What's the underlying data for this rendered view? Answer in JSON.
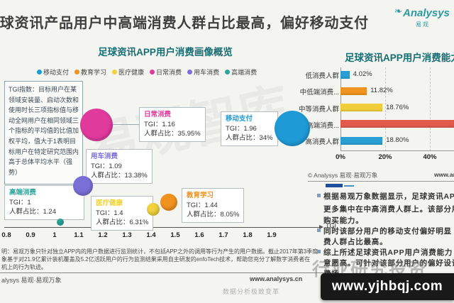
{
  "page": {
    "title": "足球资讯产品用户中高端消费人群占比最高，偏好移动支付",
    "logo": {
      "brand": "Analysys",
      "leaf_icon": "❧",
      "tagline": "易观"
    }
  },
  "left_chart": {
    "title": "足球资讯APP用户消费画像概览",
    "legend": [
      {
        "label": "移动支付",
        "color": "#1e9ad6"
      },
      {
        "label": "教育学习",
        "color": "#f0921e"
      },
      {
        "label": "医疗健康",
        "color": "#efd23e"
      },
      {
        "label": "日常消费",
        "color": "#e13a9d"
      },
      {
        "label": "用车消费",
        "color": "#7a6fd6"
      },
      {
        "label": "高端消费",
        "color": "#2aa79e"
      }
    ],
    "tgi_note": "TGI指数：目标用户在某领域安装量、启动次数和使用时长三项指标值与移动全网用户在相同领域三个指标的平均值的比值加权平均，值大于1表明目标用户在特定研究范围内高于总体平均水平（强势）",
    "axis": {
      "label": "TGI",
      "ticks": [
        "0.8",
        "0.9",
        "1",
        "1.1",
        "1.2",
        "1.3",
        "1.4",
        "1.5",
        "1.6",
        "1.7",
        "1.8",
        "1.9"
      ]
    },
    "bubbles": [
      {
        "name": "日常消费",
        "tgi": "1.16",
        "share": "35.95%",
        "color": "#e13a9d"
      },
      {
        "name": "移动支付",
        "tgi": "1.96",
        "share": "34%",
        "color": "#1e9ad6"
      },
      {
        "name": "用车消费",
        "tgi": "1.09",
        "share": "13.38%",
        "color": "#7a6fd6"
      },
      {
        "name": "高端消费",
        "tgi": "1",
        "share": "1.24",
        "color": "#2aa79e"
      },
      {
        "name": "医疗健康",
        "tgi": "1.4",
        "share": "6.31%",
        "color": "#efd23e"
      },
      {
        "name": "教育学习",
        "tgi": "1.44",
        "share": "8.05%",
        "color": "#f0921e"
      }
    ],
    "tgi_prefix": "TGI：",
    "share_prefix": "人群占比：",
    "note_lines": [
      "明：易观万象只针对独立APP内的用户数据进行监测统计，不包括APP之外的调用等行为产生的用户数据。截止2017年第3季度",
      "象基于对21.9亿累计装机覆盖及5.2亿活跃用户的行为监测结果采用自主研发的enfoTech技术，帮助您充分了解数字消费者在",
      "机上的行为轨迹。"
    ],
    "footer": {
      "brand": "alysys 易观·易观万象",
      "site": "www.analysys.cn",
      "slogan": "数据分析极致变革"
    }
  },
  "right_chart": {
    "title": "足球资讯APP用户消费能力分布",
    "bars": [
      {
        "label": "低消费人群",
        "value": "4.02%",
        "pct": 4.02,
        "color": "#2a9fd4"
      },
      {
        "label": "中低端消费...",
        "value": "11.82%",
        "pct": 11.82,
        "color": "#f0941f"
      },
      {
        "label": "中等消费人群",
        "value": "18.76%",
        "pct": 18.76,
        "color": "#f2cf3a"
      },
      {
        "label": "中高端消费...",
        "value": "",
        "pct": null,
        "color": "#e25b4d"
      },
      {
        "label": "高消费人群",
        "value": "18.80%",
        "pct": 18.8,
        "color": "#2a9fd4"
      }
    ],
    "x_ticks": [
      "0%",
      "20%",
      "40%"
    ],
    "footer": {
      "brand": "© Analysys 易观·易观万象",
      "site": "www.analysys.cn"
    }
  },
  "insights": {
    "lines": [
      {
        "bullet": true,
        "text": "根据易观万象数据显示，足球资讯AP"
      },
      {
        "bullet": false,
        "text": "更多集中在中高消费人群上。该部分用"
      },
      {
        "bullet": false,
        "text": "购买能力。"
      },
      {
        "bullet": true,
        "text": "同时该部分用户的移动支付偏好明显"
      },
      {
        "bullet": false,
        "text": "费人群占比最高。"
      },
      {
        "bullet": true,
        "text": "综上所述足球资讯APP用户消费能力"
      },
      {
        "bullet": false,
        "text": "意愿高。可针对该部分用户的偏好设计"
      },
      {
        "bullet": false,
        "text": "费场"
      }
    ]
  },
  "watermarks": {
    "big_text": "易观智库",
    "gray_text": "行业研究投资",
    "box_text": "www.yjhbqj.com"
  },
  "chart_data": [
    {
      "type": "scatter",
      "title": "足球资讯APP用户消费画像概览",
      "xlabel": "TGI",
      "xlim": [
        0.8,
        2.0
      ],
      "legend_position": "top",
      "grid": false,
      "series": [
        {
          "name": "日常消费",
          "tgi": 1.16,
          "share_pct": 35.95
        },
        {
          "name": "移动支付",
          "tgi": 1.96,
          "share_pct": 34.0
        },
        {
          "name": "用车消费",
          "tgi": 1.09,
          "share_pct": 13.38
        },
        {
          "name": "教育学习",
          "tgi": 1.44,
          "share_pct": 8.05
        },
        {
          "name": "医疗健康",
          "tgi": 1.4,
          "share_pct": 6.31
        },
        {
          "name": "高端消费",
          "tgi": 1.0,
          "share_pct": 1.24
        }
      ]
    },
    {
      "type": "bar",
      "title": "足球资讯APP用户消费能力分布",
      "orientation": "horizontal",
      "categories": [
        "低消费人群",
        "中低端消费人群",
        "中等消费人群",
        "中高端消费人群",
        "高消费人群"
      ],
      "values": [
        4.02,
        11.82,
        18.76,
        null,
        18.8
      ],
      "value_notes": "中高端消费人群 bar extends past the cropped image edge; its value label is not visible (estimated ~46.6%)",
      "xlabel": "",
      "ylabel": "",
      "xlim": [
        0,
        50
      ],
      "grid": "vertical-dashed"
    }
  ]
}
